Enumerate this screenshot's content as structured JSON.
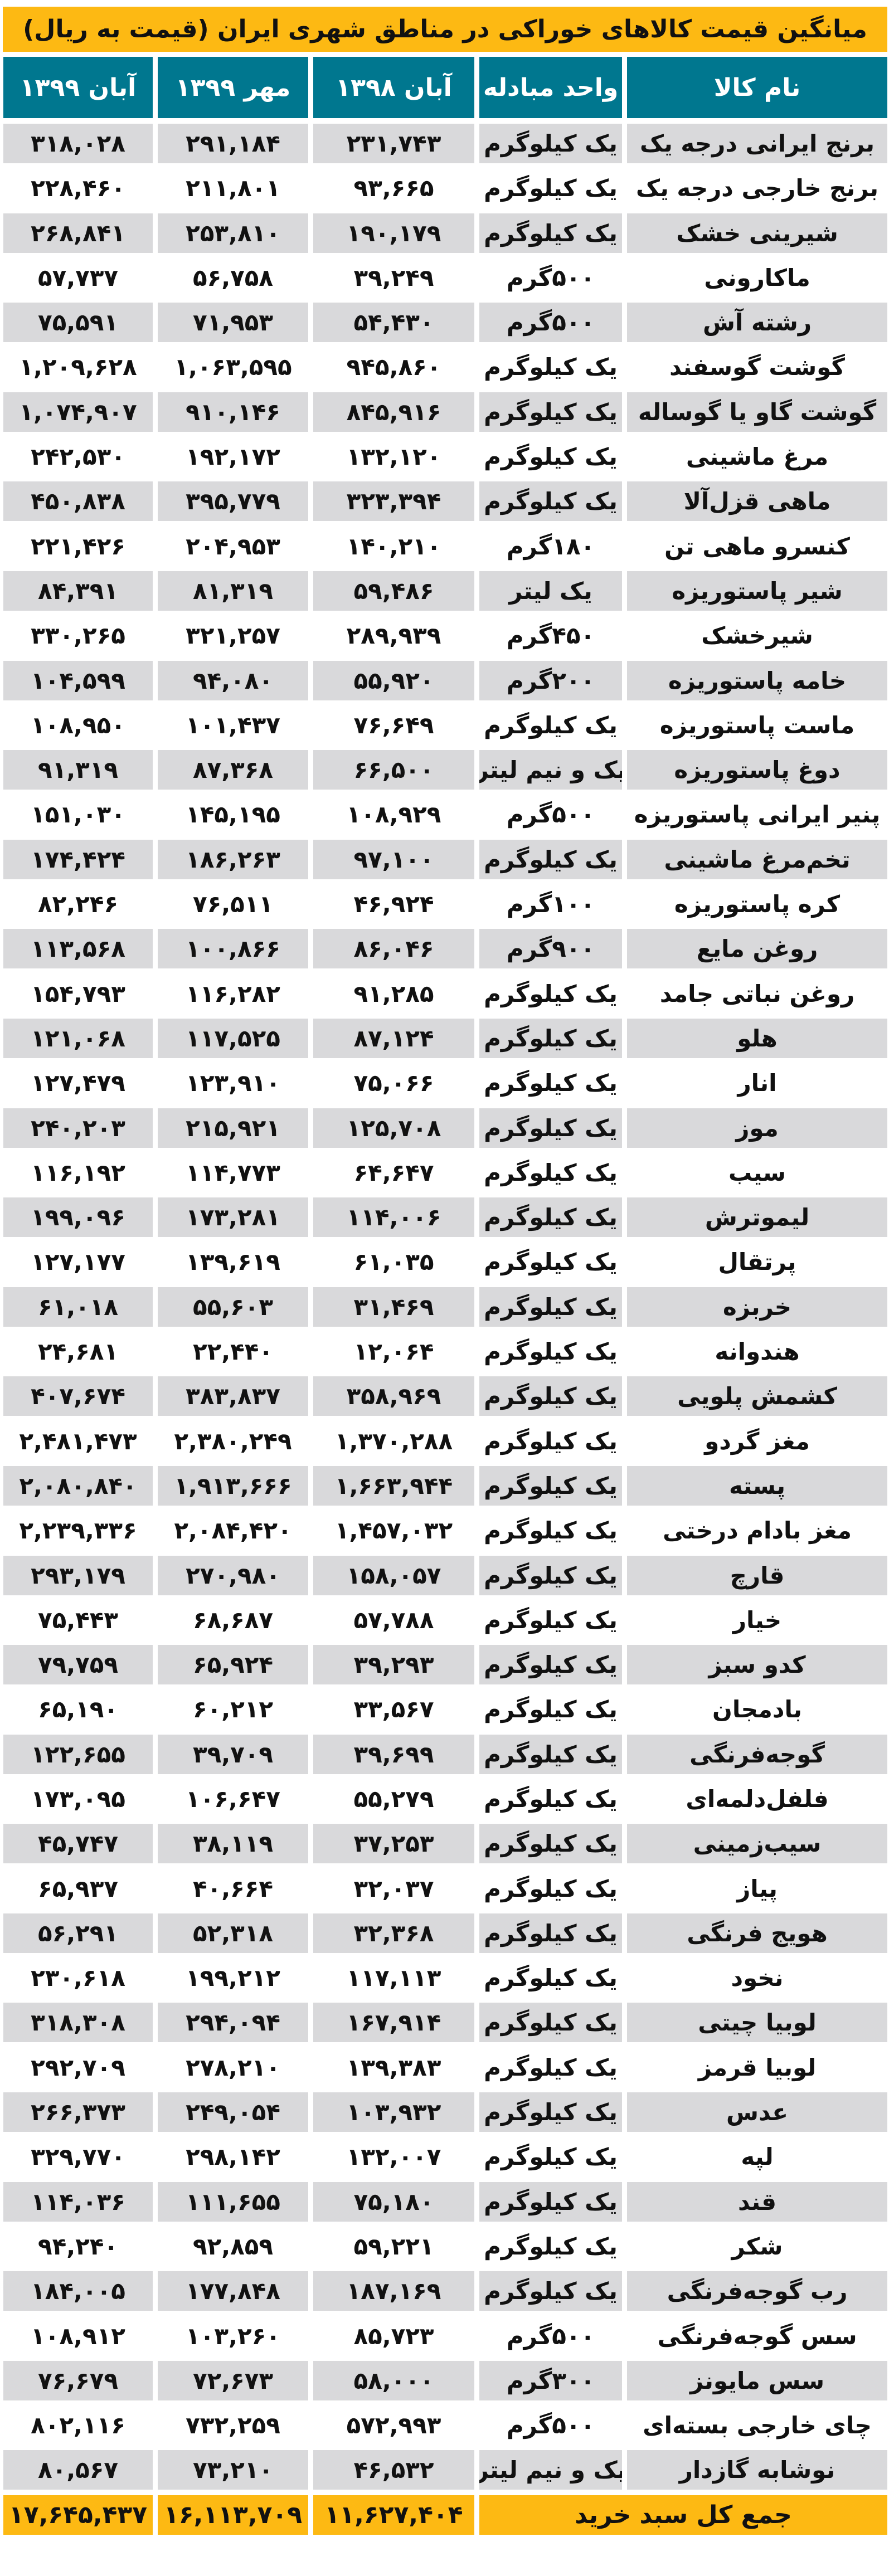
{
  "title": "میانگین قیمت کالاهای خوراکی در مناطق شهری ایران (قیمت به ریال)",
  "colors": {
    "title_bg": "#FDB913",
    "header_bg": "#00778F",
    "row_gray": "#D9D9DB"
  },
  "headers": [
    "نام کالا",
    "واحد مبادله",
    "آبان ۱۳۹۸",
    "مهر ۱۳۹۹",
    "آبان ۱۳۹۹"
  ],
  "rows": [
    [
      "برنج ایرانی درجه یک",
      "یک کیلوگرم",
      "۲۳۱,۷۴۳",
      "۲۹۱,۱۸۴",
      "۳۱۸,۰۲۸"
    ],
    [
      "برنج خارجی درجه یک",
      "یک کیلوگرم",
      "۹۳,۶۶۵",
      "۲۱۱,۸۰۱",
      "۲۲۸,۴۶۰"
    ],
    [
      "شیرینی خشک",
      "یک کیلوگرم",
      "۱۹۰,۱۷۹",
      "۲۵۳,۸۱۰",
      "۲۶۸,۸۴۱"
    ],
    [
      "ماکارونی",
      "۵۰۰گرم",
      "۳۹,۲۴۹",
      "۵۶,۷۵۸",
      "۵۷,۷۳۷"
    ],
    [
      "رشته آش",
      "۵۰۰گرم",
      "۵۴,۴۳۰",
      "۷۱,۹۵۳",
      "۷۵,۵۹۱"
    ],
    [
      "گوشت گوسفند",
      "یک کیلوگرم",
      "۹۴۵,۸۶۰",
      "۱,۰۶۳,۵۹۵",
      "۱,۲۰۹,۶۲۸"
    ],
    [
      "گوشت گاو یا گوساله",
      "یک کیلوگرم",
      "۸۴۵,۹۱۶",
      "۹۱۰,۱۴۶",
      "۱,۰۷۴,۹۰۷"
    ],
    [
      "مرغ ماشینی",
      "یک کیلوگرم",
      "۱۳۲,۱۲۰",
      "۱۹۲,۱۷۲",
      "۲۴۲,۵۳۰"
    ],
    [
      "ماهی قزل‌آلا",
      "یک کیلوگرم",
      "۳۲۳,۳۹۴",
      "۳۹۵,۷۷۹",
      "۴۵۰,۸۳۸"
    ],
    [
      "کنسرو ماهی تن",
      "۱۸۰گرم",
      "۱۴۰,۲۱۰",
      "۲۰۴,۹۵۳",
      "۲۲۱,۴۲۶"
    ],
    [
      "شیر پاستوریزه",
      "یک لیتر",
      "۵۹,۴۸۶",
      "۸۱,۳۱۹",
      "۸۴,۳۹۱"
    ],
    [
      "شیرخشک",
      "۴۵۰گرم",
      "۲۸۹,۹۳۹",
      "۳۲۱,۲۵۷",
      "۳۳۰,۲۶۵"
    ],
    [
      "خامه پاستوریزه",
      "۲۰۰گرم",
      "۵۵,۹۲۰",
      "۹۴,۰۸۰",
      "۱۰۴,۵۹۹"
    ],
    [
      "ماست پاستوریزه",
      "یک کیلوگرم",
      "۷۶,۶۴۹",
      "۱۰۱,۴۳۷",
      "۱۰۸,۹۵۰"
    ],
    [
      "دوغ پاستوریزه",
      "یک و نیم لیتر",
      "۶۶,۵۰۰",
      "۸۷,۳۶۸",
      "۹۱,۳۱۹"
    ],
    [
      "پنیر ایرانی پاستوریزه",
      "۵۰۰گرم",
      "۱۰۸,۹۲۹",
      "۱۴۵,۱۹۵",
      "۱۵۱,۰۳۰"
    ],
    [
      "تخم‌مرغ ماشینی",
      "یک کیلوگرم",
      "۹۷,۱۰۰",
      "۱۸۶,۲۶۳",
      "۱۷۴,۴۲۴"
    ],
    [
      "کره پاستوریزه",
      "۱۰۰گرم",
      "۴۶,۹۲۴",
      "۷۶,۵۱۱",
      "۸۲,۲۴۶"
    ],
    [
      "روغن مایع",
      "۹۰۰گرم",
      "۸۶,۰۴۶",
      "۱۰۰,۸۶۶",
      "۱۱۳,۵۶۸"
    ],
    [
      "روغن نباتی جامد",
      "یک کیلوگرم",
      "۹۱,۲۸۵",
      "۱۱۶,۲۸۲",
      "۱۵۴,۷۹۳"
    ],
    [
      "هلو",
      "یک کیلوگرم",
      "۸۷,۱۲۴",
      "۱۱۷,۵۲۵",
      "۱۲۱,۰۶۸"
    ],
    [
      "انار",
      "یک کیلوگرم",
      "۷۵,۰۶۶",
      "۱۲۳,۹۱۰",
      "۱۲۷,۴۷۹"
    ],
    [
      "موز",
      "یک کیلوگرم",
      "۱۲۵,۷۰۸",
      "۲۱۵,۹۲۱",
      "۲۴۰,۲۰۳"
    ],
    [
      "سیب",
      "یک کیلوگرم",
      "۶۴,۶۴۷",
      "۱۱۴,۷۷۳",
      "۱۱۶,۱۹۲"
    ],
    [
      "لیموترش",
      "یک کیلوگرم",
      "۱۱۴,۰۰۶",
      "۱۷۳,۲۸۱",
      "۱۹۹,۰۹۶"
    ],
    [
      "پرتقال",
      "یک کیلوگرم",
      "۶۱,۰۳۵",
      "۱۳۹,۶۱۹",
      "۱۲۷,۱۷۷"
    ],
    [
      "خربزه",
      "یک کیلوگرم",
      "۳۱,۴۶۹",
      "۵۵,۶۰۳",
      "۶۱,۰۱۸"
    ],
    [
      "هندوانه",
      "یک کیلوگرم",
      "۱۲,۰۶۴",
      "۲۲,۴۴۰",
      "۲۴,۶۸۱"
    ],
    [
      "کشمش پلویی",
      "یک کیلوگرم",
      "۳۵۸,۹۶۹",
      "۳۸۳,۸۳۷",
      "۴۰۷,۶۷۴"
    ],
    [
      "مغز گردو",
      "یک کیلوگرم",
      "۱,۳۷۰,۲۸۸",
      "۲,۳۸۰,۲۴۹",
      "۲,۴۸۱,۴۷۳"
    ],
    [
      "پسته",
      "یک کیلوگرم",
      "۱,۶۶۳,۹۴۴",
      "۱,۹۱۳,۶۶۶",
      "۲,۰۸۰,۸۴۰"
    ],
    [
      "مغز بادام درختی",
      "یک کیلوگرم",
      "۱,۴۵۷,۰۳۲",
      "۲,۰۸۴,۴۲۰",
      "۲,۲۳۹,۳۳۶"
    ],
    [
      "قارچ",
      "یک کیلوگرم",
      "۱۵۸,۰۵۷",
      "۲۷۰,۹۸۰",
      "۲۹۳,۱۷۹"
    ],
    [
      "خیار",
      "یک کیلوگرم",
      "۵۷,۷۸۸",
      "۶۸,۶۸۷",
      "۷۵,۴۴۳"
    ],
    [
      "کدو سبز",
      "یک کیلوگرم",
      "۳۹,۲۹۳",
      "۶۵,۹۲۴",
      "۷۹,۷۵۹"
    ],
    [
      "بادمجان",
      "یک کیلوگرم",
      "۳۳,۵۶۷",
      "۶۰,۲۱۲",
      "۶۵,۱۹۰"
    ],
    [
      "گوجه‌فرنگی",
      "یک کیلوگرم",
      "۳۹,۶۹۹",
      "۳۹,۷۰۹",
      "۱۲۲,۶۵۵"
    ],
    [
      "فلفل‌دلمه‌ای",
      "یک کیلوگرم",
      "۵۵,۲۷۹",
      "۱۰۶,۶۴۷",
      "۱۷۳,۰۹۵"
    ],
    [
      "سیب‌زمینی",
      "یک کیلوگرم",
      "۳۷,۲۵۳",
      "۳۸,۱۱۹",
      "۴۵,۷۴۷"
    ],
    [
      "پیاز",
      "یک کیلوگرم",
      "۳۲,۰۳۷",
      "۴۰,۶۶۴",
      "۶۵,۹۳۷"
    ],
    [
      "هویج فرنگی",
      "یک کیلوگرم",
      "۳۲,۳۶۸",
      "۵۲,۳۱۸",
      "۵۶,۲۹۱"
    ],
    [
      "نخود",
      "یک کیلوگرم",
      "۱۱۷,۱۱۳",
      "۱۹۹,۲۱۲",
      "۲۳۰,۶۱۸"
    ],
    [
      "لوبیا چیتی",
      "یک کیلوگرم",
      "۱۶۷,۹۱۴",
      "۲۹۴,۰۹۴",
      "۳۱۸,۳۰۸"
    ],
    [
      "لوبیا قرمز",
      "یک کیلوگرم",
      "۱۳۹,۳۸۳",
      "۲۷۸,۲۱۰",
      "۲۹۲,۷۰۹"
    ],
    [
      "عدس",
      "یک کیلوگرم",
      "۱۰۳,۹۳۲",
      "۲۴۹,۰۵۴",
      "۲۶۶,۳۷۳"
    ],
    [
      "لپه",
      "یک کیلوگرم",
      "۱۳۲,۰۰۷",
      "۲۹۸,۱۴۲",
      "۳۲۹,۷۷۰"
    ],
    [
      "قند",
      "یک کیلوگرم",
      "۷۵,۱۸۰",
      "۱۱۱,۶۵۵",
      "۱۱۴,۰۳۶"
    ],
    [
      "شکر",
      "یک کیلوگرم",
      "۵۹,۲۲۱",
      "۹۲,۸۵۹",
      "۹۴,۲۴۰"
    ],
    [
      "رب گوجه‌فرنگی",
      "یک کیلوگرم",
      "۱۸۷,۱۶۹",
      "۱۷۷,۸۴۸",
      "۱۸۴,۰۰۵"
    ],
    [
      "سس گوجه‌فرنگی",
      "۵۰۰گرم",
      "۸۵,۷۲۳",
      "۱۰۳,۲۶۰",
      "۱۰۸,۹۱۲"
    ],
    [
      "سس مایونز",
      "۳۰۰گرم",
      "۵۸,۰۰۰",
      "۷۲,۶۷۳",
      "۷۶,۶۷۹"
    ],
    [
      "چای خارجی بسته‌ای",
      "۵۰۰گرم",
      "۵۷۲,۹۹۳",
      "۷۳۲,۲۵۹",
      "۸۰۲,۱۱۶"
    ],
    [
      "نوشابه گازدار",
      "یک و نیم لیتر",
      "۴۶,۵۳۲",
      "۷۳,۲۱۰",
      "۸۰,۵۶۷"
    ]
  ],
  "total": {
    "label": "جمع کل سبد خرید",
    "values": [
      "۱۱,۶۲۷,۴۰۴",
      "۱۶,۱۱۳,۷۰۹",
      "۱۷,۶۴۵,۴۳۷"
    ]
  }
}
